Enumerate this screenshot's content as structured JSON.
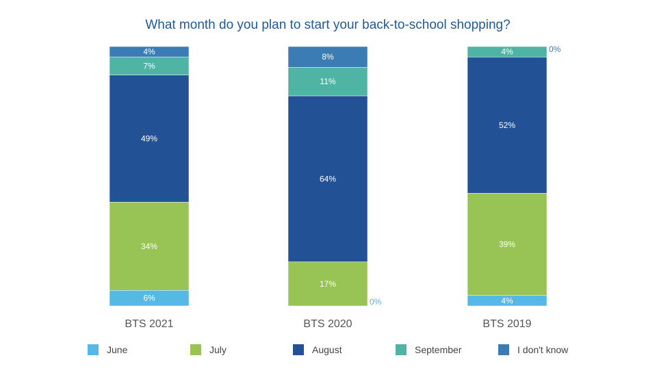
{
  "chart_data": {
    "type": "bar",
    "stacked": true,
    "title": "What month do you plan to start your back-to-school shopping?",
    "categories": [
      "BTS 2021",
      "BTS 2020",
      "BTS 2019"
    ],
    "series": [
      {
        "name": "June",
        "values": [
          6,
          0,
          4
        ],
        "labels": [
          "6%",
          "0%",
          "4%"
        ],
        "color": "#56b9e3"
      },
      {
        "name": "July",
        "values": [
          34,
          17,
          39
        ],
        "labels": [
          "34%",
          "17%",
          "39%"
        ],
        "color": "#98c455"
      },
      {
        "name": "August",
        "values": [
          49,
          64,
          52
        ],
        "labels": [
          "49%",
          "64%",
          "52%"
        ],
        "color": "#235195"
      },
      {
        "name": "September",
        "values": [
          7,
          11,
          4
        ],
        "labels": [
          "7%",
          "11%",
          "4%"
        ],
        "color": "#50b4a5"
      },
      {
        "name": "I don't know",
        "values": [
          4,
          8,
          0
        ],
        "labels": [
          "4%",
          "8%",
          "0%"
        ],
        "color": "#3a7cb3"
      }
    ],
    "legend_position": "bottom",
    "grid": false,
    "title_color": "#1f5a96"
  }
}
